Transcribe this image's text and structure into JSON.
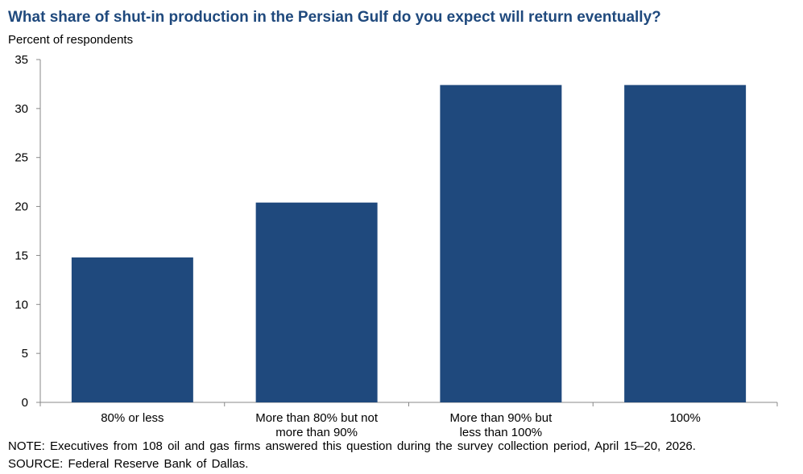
{
  "chart_data": {
    "type": "bar",
    "title": "What share of shut-in production in the Persian Gulf do you expect will return eventually?",
    "ylabel": "Percent of respondents",
    "xlabel": "",
    "categories": [
      [
        "80% or less"
      ],
      [
        "More than 80% but not",
        "more than 90%"
      ],
      [
        "More than 90% but",
        "less than 100%"
      ],
      [
        "100%"
      ]
    ],
    "values": [
      14.8,
      20.4,
      32.4,
      32.4
    ],
    "ylim": [
      0,
      35
    ],
    "yticks": [
      0,
      5,
      10,
      15,
      20,
      25,
      30,
      35
    ],
    "grid": false,
    "bar_color": "#1f497d"
  },
  "notes": {
    "note": "NOTE: Executives from 108 oil and gas firms answered this question during the survey collection period, April 15–20, 2026.",
    "source": "SOURCE: Federal Reserve Bank of Dallas."
  }
}
